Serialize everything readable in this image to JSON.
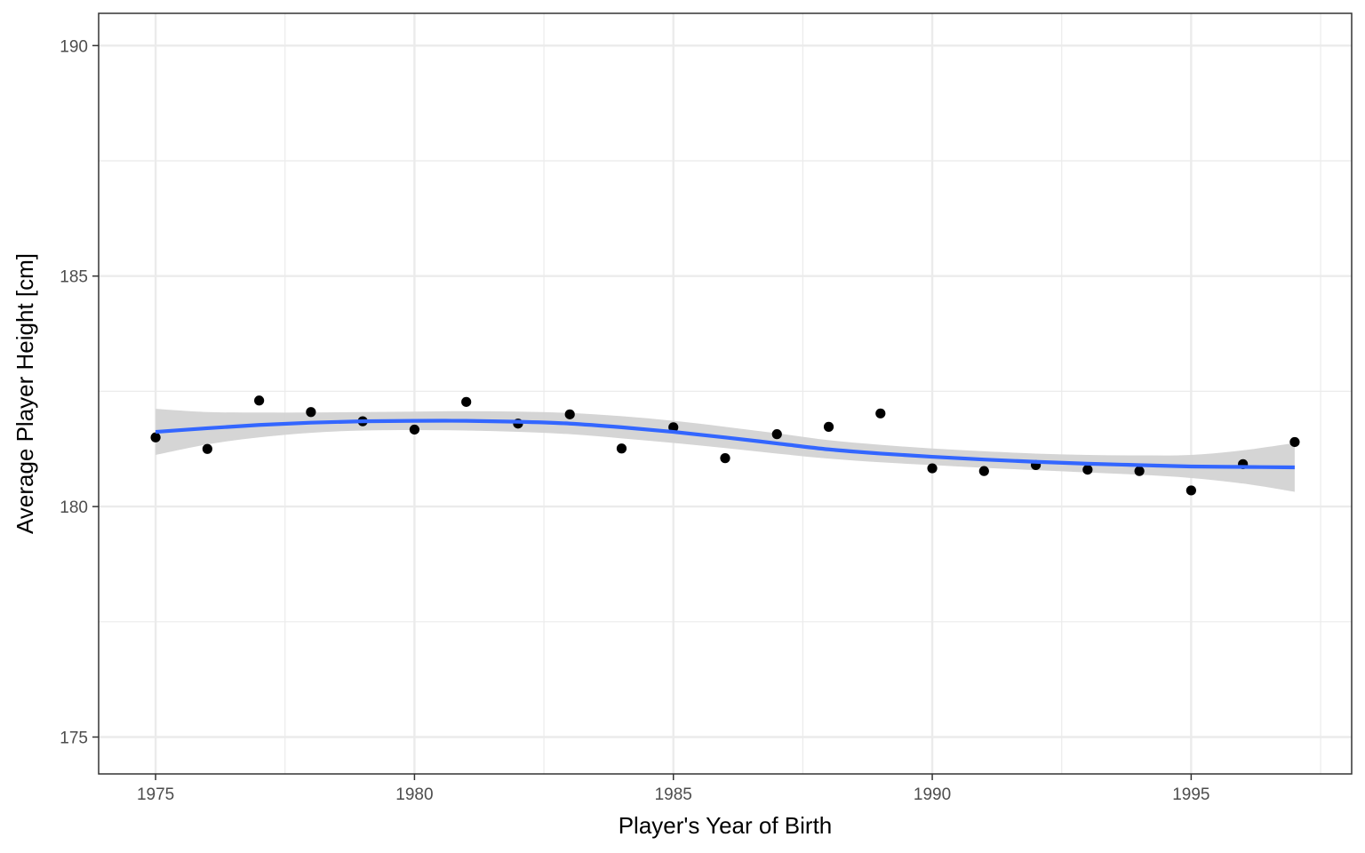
{
  "chart_data": {
    "type": "scatter",
    "title": "",
    "xlabel": "Player's Year of Birth",
    "ylabel": "Average Player Height [cm]",
    "xlim": [
      1973.9,
      1998.1
    ],
    "ylim": [
      174.2,
      190.7
    ],
    "x_ticks": [
      1975,
      1980,
      1985,
      1990,
      1995
    ],
    "y_ticks": [
      175,
      180,
      185,
      190
    ],
    "x_minor_ticks": [
      1977.5,
      1982.5,
      1987.5,
      1992.5,
      1997.5
    ],
    "y_minor_ticks": [
      177.5,
      182.5,
      187.5
    ],
    "grid": true,
    "legend": "none",
    "points": {
      "x": [
        1975,
        1976,
        1977,
        1978,
        1979,
        1980,
        1981,
        1982,
        1983,
        1984,
        1985,
        1986,
        1987,
        1988,
        1989,
        1990,
        1991,
        1992,
        1993,
        1994,
        1995,
        1996,
        1997
      ],
      "y": [
        181.5,
        181.25,
        182.3,
        182.05,
        181.85,
        181.67,
        182.27,
        181.8,
        182.0,
        181.26,
        181.72,
        181.05,
        181.57,
        181.73,
        182.02,
        180.83,
        180.77,
        180.9,
        180.8,
        180.77,
        180.35,
        180.92,
        181.4
      ],
      "color": "#000000"
    },
    "smooth": {
      "x": [
        1975,
        1976,
        1977,
        1978,
        1979,
        1980,
        1981,
        1982,
        1983,
        1984,
        1985,
        1986,
        1987,
        1988,
        1989,
        1990,
        1991,
        1992,
        1993,
        1994,
        1995,
        1996,
        1997
      ],
      "y": [
        181.62,
        181.7,
        181.77,
        181.82,
        181.85,
        181.86,
        181.86,
        181.84,
        181.8,
        181.72,
        181.62,
        181.5,
        181.37,
        181.24,
        181.15,
        181.08,
        181.02,
        180.97,
        180.93,
        180.9,
        180.87,
        180.86,
        180.85
      ],
      "lower": [
        181.12,
        181.35,
        181.5,
        181.6,
        181.65,
        181.66,
        181.65,
        181.62,
        181.57,
        181.48,
        181.38,
        181.27,
        181.15,
        181.04,
        180.96,
        180.9,
        180.84,
        180.79,
        180.74,
        180.69,
        180.62,
        180.5,
        180.32
      ],
      "upper": [
        182.12,
        182.05,
        182.04,
        182.04,
        182.05,
        182.06,
        182.07,
        182.06,
        182.03,
        181.96,
        181.86,
        181.73,
        181.59,
        181.44,
        181.34,
        181.26,
        181.2,
        181.15,
        181.12,
        181.11,
        181.12,
        181.22,
        181.38
      ],
      "line_color": "#3366ff",
      "band_color": "#d3d3d3"
    }
  }
}
